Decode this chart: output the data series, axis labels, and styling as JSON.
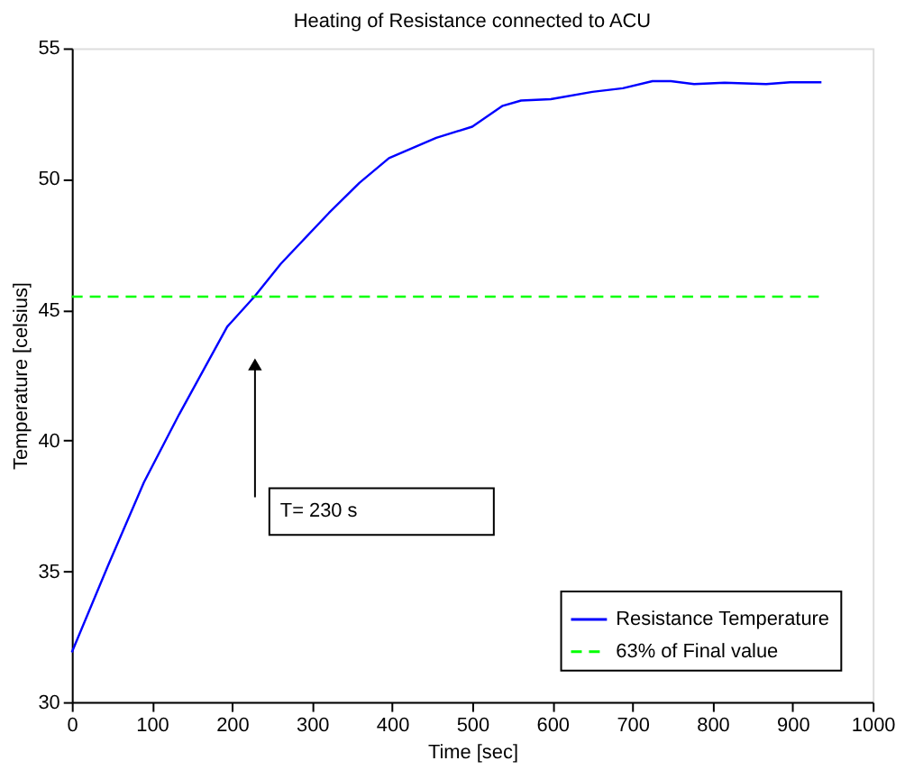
{
  "chart_data": {
    "type": "line",
    "title": "Heating of Resistance connected to ACU",
    "xlabel": "Time [sec]",
    "ylabel": "Temperature [celsius]",
    "x": [
      0,
      45,
      90,
      134,
      194,
      228,
      261,
      321,
      359,
      396,
      455,
      500,
      538,
      561,
      598,
      650,
      688,
      725,
      748,
      777,
      815,
      867,
      897,
      936
    ],
    "series": [
      {
        "name": "Resistance Temperature",
        "color": "#0000ff",
        "values": [
          31.9,
          35.2,
          38.4,
          41.0,
          44.35,
          45.5,
          46.76,
          48.7,
          49.85,
          50.8,
          51.57,
          52.0,
          52.8,
          53.0,
          53.05,
          53.33,
          53.47,
          53.74,
          53.74,
          53.63,
          53.68,
          53.63,
          53.7,
          53.7
        ]
      }
    ],
    "ref_lines": [
      {
        "axis": "y",
        "value": 45.5,
        "label": "63% of Final value",
        "color": "#00ff00",
        "line_style": "dashed"
      }
    ],
    "annotations": [
      "T= 230 s"
    ],
    "xlim": [
      0,
      1000
    ],
    "xticks": [
      0,
      100,
      200,
      300,
      400,
      500,
      600,
      700,
      800,
      900,
      1000
    ],
    "ylim": [
      30,
      55
    ],
    "yticks": [
      30,
      35,
      40,
      45,
      50,
      55
    ],
    "grid": false,
    "legend": "bottom right",
    "line_style": "solid",
    "marker": "none"
  }
}
